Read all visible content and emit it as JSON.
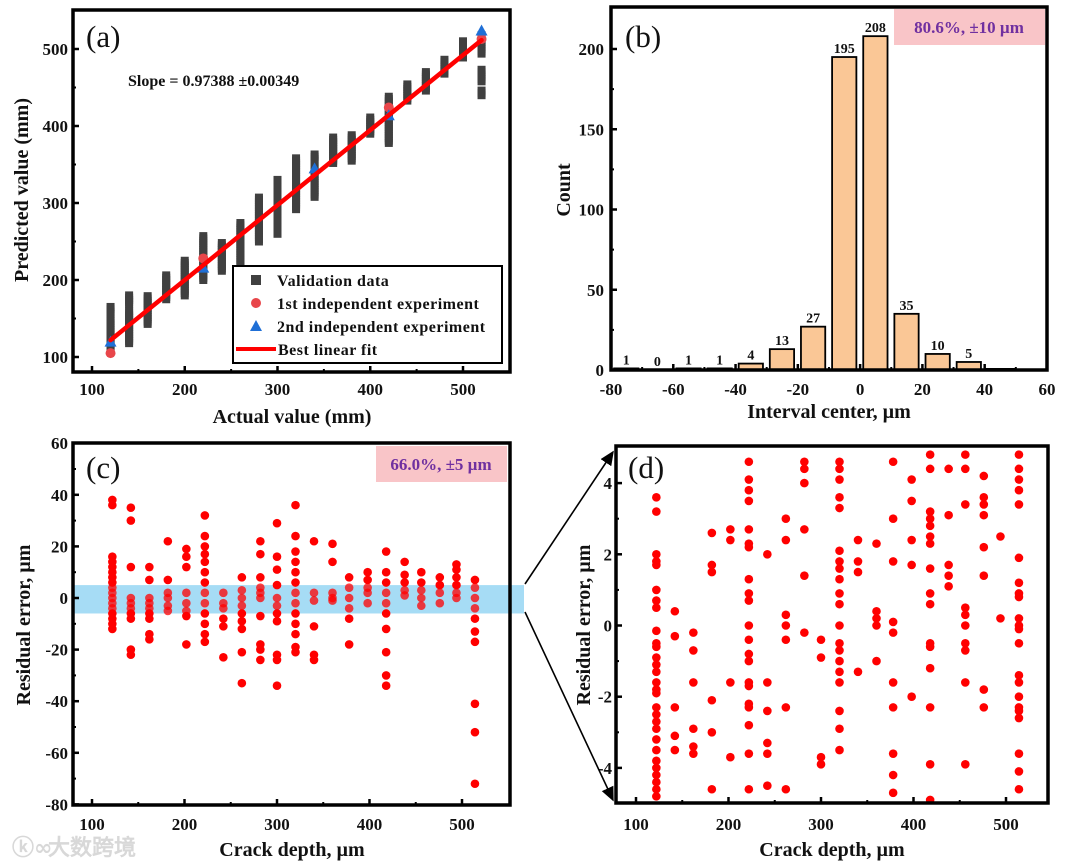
{
  "watermark": "大数跨境",
  "colors": {
    "validation": "#404040",
    "exp1": "#e8464a",
    "exp2": "#1f6fd6",
    "fit": "#ff0000",
    "bar": "#fac796",
    "note_bg": "#f9c5c8",
    "note_text": "#7030a0",
    "band": "#a6dcf5",
    "residual": "#ff0000"
  },
  "chart_data": [
    {
      "panel": "(a)",
      "type": "scatter",
      "xlabel": "Actual value (mm)",
      "ylabel": "Predicted value (mm)",
      "xticks": [
        100,
        200,
        300,
        400,
        500
      ],
      "yticks": [
        100,
        200,
        300,
        400,
        500
      ],
      "annotation": "Slope = 0.97388 ±0.00349",
      "fit": {
        "slope": 0.97388,
        "slope_err": 0.00349,
        "intercept": 5.1,
        "x_range": [
          120,
          520
        ]
      },
      "legend": [
        "Validation data",
        "1st independent experiment",
        "2nd independent experiment",
        "Best linear fit"
      ],
      "legend_position": "bottom-right",
      "validation_ranges": [
        {
          "x": 120,
          "ranges": [
            [
              108,
              150
            ],
            [
              156,
              165
            ]
          ]
        },
        {
          "x": 140,
          "ranges": [
            [
              118,
              160
            ],
            [
              168,
              180
            ]
          ]
        },
        {
          "x": 160,
          "ranges": [
            [
              143,
              180
            ]
          ]
        },
        {
          "x": 180,
          "ranges": [
            [
              175,
              196
            ],
            [
              200,
              208
            ]
          ]
        },
        {
          "x": 200,
          "ranges": [
            [
              180,
              226
            ]
          ]
        },
        {
          "x": 220,
          "ranges": [
            [
              200,
              258
            ]
          ]
        },
        {
          "x": 240,
          "ranges": [
            [
              212,
              248
            ]
          ]
        },
        {
          "x": 260,
          "ranges": [
            [
              220,
              274
            ]
          ]
        },
        {
          "x": 280,
          "ranges": [
            [
              250,
              307
            ]
          ]
        },
        {
          "x": 300,
          "ranges": [
            [
              260,
              320
            ],
            [
              324,
              332
            ]
          ]
        },
        {
          "x": 320,
          "ranges": [
            [
              292,
              360
            ]
          ]
        },
        {
          "x": 340,
          "ranges": [
            [
              308,
              348
            ],
            [
              354,
              365
            ]
          ]
        },
        {
          "x": 360,
          "ranges": [
            [
              352,
              385
            ]
          ]
        },
        {
          "x": 380,
          "ranges": [
            [
              355,
              390
            ]
          ]
        },
        {
          "x": 400,
          "ranges": [
            [
              390,
              413
            ]
          ]
        },
        {
          "x": 420,
          "ranges": [
            [
              378,
              439
            ]
          ]
        },
        {
          "x": 440,
          "ranges": [
            [
              433,
              455
            ]
          ]
        },
        {
          "x": 460,
          "ranges": [
            [
              446,
              470
            ]
          ]
        },
        {
          "x": 480,
          "ranges": [
            [
              468,
              488
            ]
          ]
        },
        {
          "x": 500,
          "ranges": [
            [
              489,
              511
            ]
          ]
        },
        {
          "x": 520,
          "ranges": [
            [
              440,
              446
            ],
            [
              458,
              474
            ],
            [
              494,
              520
            ]
          ]
        }
      ],
      "exp1": [
        [
          120,
          105
        ],
        [
          220,
          228
        ],
        [
          420,
          424
        ],
        [
          520,
          513
        ]
      ],
      "exp2": [
        [
          120,
          120
        ],
        [
          220,
          216
        ],
        [
          340,
          345
        ],
        [
          420,
          414
        ],
        [
          520,
          524
        ]
      ]
    },
    {
      "panel": "(b)",
      "type": "bar",
      "xlabel": "Interval center, µm",
      "ylabel": "Count",
      "xticks": [
        -80,
        -60,
        -40,
        -20,
        0,
        20,
        40,
        60
      ],
      "yticks": [
        0,
        50,
        100,
        150,
        200
      ],
      "xlim": [
        -80,
        60
      ],
      "ylim": [
        0,
        225
      ],
      "categories": [
        -75,
        -65,
        -55,
        -45,
        -35,
        -25,
        -15,
        -5,
        5,
        15,
        25,
        35
      ],
      "values": [
        1,
        0,
        1,
        1,
        4,
        13,
        27,
        195,
        208,
        35,
        10,
        5
      ],
      "note": "80.6%, ±10 µm"
    },
    {
      "panel": "(c)",
      "type": "scatter",
      "xlabel": "Crack depth, µm",
      "ylabel": "Residual error, µm",
      "xticks": [
        100,
        200,
        300,
        400,
        500
      ],
      "yticks": [
        60,
        40,
        20,
        0,
        -20,
        -40,
        -60,
        -80
      ],
      "ylim": [
        -80,
        60
      ],
      "band": [
        -6,
        5
      ],
      "note": "66.0%, ±5 µm",
      "columns": [
        {
          "x": 122,
          "y": [
            38,
            36,
            16,
            14,
            12,
            10,
            8,
            6,
            4,
            2,
            0,
            -2,
            -4,
            -6,
            -8,
            -10,
            -12
          ]
        },
        {
          "x": 142,
          "y": [
            35,
            30,
            12,
            0,
            -2,
            -4,
            -6,
            -8,
            -20,
            -22
          ]
        },
        {
          "x": 162,
          "y": [
            12,
            7,
            0,
            -2,
            -4,
            -6,
            -8,
            -14,
            -16
          ]
        },
        {
          "x": 182,
          "y": [
            22,
            7,
            2,
            0,
            -3,
            -5
          ]
        },
        {
          "x": 202,
          "y": [
            19,
            16,
            12,
            2,
            -2,
            -5,
            -7,
            -18
          ]
        },
        {
          "x": 222,
          "y": [
            32,
            24,
            20,
            17,
            14,
            10,
            6,
            2,
            -2,
            -6,
            -10,
            -14,
            -17
          ]
        },
        {
          "x": 242,
          "y": [
            2,
            -2,
            -4,
            -8,
            -11,
            -23
          ]
        },
        {
          "x": 262,
          "y": [
            8,
            3,
            0,
            -3,
            -6,
            -9,
            -12,
            -21,
            -33
          ]
        },
        {
          "x": 282,
          "y": [
            22,
            17,
            8,
            4,
            2,
            0,
            -7,
            -18,
            -20,
            -24
          ]
        },
        {
          "x": 300,
          "y": [
            29,
            16,
            11,
            5,
            0,
            -3,
            -6,
            -9,
            -22,
            -24,
            -34
          ]
        },
        {
          "x": 320,
          "y": [
            36,
            24,
            18,
            14,
            10,
            6,
            2,
            -2,
            -6,
            -10,
            -14,
            -19,
            -21
          ]
        },
        {
          "x": 340,
          "y": [
            22,
            2,
            -1,
            -11,
            -22,
            -24
          ]
        },
        {
          "x": 360,
          "y": [
            21,
            14,
            2,
            0,
            -1
          ]
        },
        {
          "x": 378,
          "y": [
            8,
            4,
            0,
            -4,
            -8,
            -18
          ]
        },
        {
          "x": 398,
          "y": [
            10,
            7,
            4,
            2,
            -2
          ]
        },
        {
          "x": 418,
          "y": [
            18,
            10,
            6,
            2,
            -2,
            -6,
            -12,
            -21,
            -30,
            -34
          ]
        },
        {
          "x": 438,
          "y": [
            14,
            9,
            6,
            3,
            1
          ]
        },
        {
          "x": 456,
          "y": [
            10,
            6,
            3,
            0,
            -3
          ]
        },
        {
          "x": 476,
          "y": [
            8,
            5,
            2,
            -2
          ]
        },
        {
          "x": 494,
          "y": [
            13,
            11,
            8,
            5,
            2,
            0
          ]
        },
        {
          "x": 514,
          "y": [
            7,
            4,
            0,
            -4,
            -8,
            -13,
            -17,
            -41,
            -52,
            -72
          ]
        }
      ]
    },
    {
      "panel": "(d)",
      "type": "scatter",
      "xlabel": "Crack depth, µm",
      "ylabel": "Residual error, µm",
      "xticks": [
        100,
        200,
        300,
        400,
        500
      ],
      "yticks": [
        4,
        2,
        0,
        -2,
        -4
      ],
      "ylim": [
        -5,
        5
      ],
      "columns": [
        {
          "x": 122,
          "y": [
            3.6,
            3.2,
            2.0,
            1.8,
            1.7,
            1.0,
            0.7,
            0.5,
            -0.15,
            -0.5,
            -0.6,
            -0.9,
            -1.1,
            -1.3,
            -1.6,
            -1.8,
            -1.9,
            -2.3,
            -2.5,
            -2.7,
            -2.9,
            -3.2,
            -3.5,
            -3.8,
            -4.0,
            -4.2,
            -4.4,
            -4.6,
            -4.8
          ]
        },
        {
          "x": 142,
          "y": [
            0.4,
            -0.3,
            -2.3,
            -3.1,
            -3.5
          ]
        },
        {
          "x": 162,
          "y": [
            -0.2,
            -0.7,
            -1.6,
            -2.9,
            -3.4,
            -3.6
          ]
        },
        {
          "x": 182,
          "y": [
            2.6,
            1.7,
            1.5,
            -2.1,
            -3.0,
            -4.6
          ]
        },
        {
          "x": 202,
          "y": [
            2.7,
            2.4,
            -1.6,
            -3.7
          ]
        },
        {
          "x": 222,
          "y": [
            4.6,
            4.1,
            3.8,
            3.5,
            2.7,
            2.3,
            2.2,
            1.3,
            0.9,
            0.7,
            0,
            -0.4,
            -0.8,
            -1.0,
            -1.6,
            -1.7,
            -2.2,
            -2.3,
            -2.8,
            -3.6,
            -4.6
          ]
        },
        {
          "x": 242,
          "y": [
            2.0,
            -1.6,
            -2.4,
            -3.3,
            -3.6,
            -4.5
          ]
        },
        {
          "x": 262,
          "y": [
            3.0,
            2.4,
            0.3,
            0,
            -0.4,
            -2.3,
            -4.6
          ]
        },
        {
          "x": 282,
          "y": [
            4.6,
            4.4,
            4.0,
            2.7,
            1.4,
            -0.2
          ]
        },
        {
          "x": 300,
          "y": [
            -0.4,
            -0.9,
            -3.7,
            -3.9
          ]
        },
        {
          "x": 320,
          "y": [
            4.6,
            4.4,
            4.1,
            3.6,
            3.3,
            2.1,
            1.8,
            1.6,
            1.3,
            0.9,
            0.6,
            0,
            -0.5,
            -0.7,
            -1.0,
            -1.3,
            -1.6,
            -2.4,
            -2.9,
            -3.5
          ]
        },
        {
          "x": 340,
          "y": [
            2.4,
            1.8,
            1.5,
            -1.3
          ]
        },
        {
          "x": 360,
          "y": [
            2.3,
            0.4,
            0.2,
            0,
            -1.0
          ]
        },
        {
          "x": 378,
          "y": [
            4.6,
            3.0,
            1.8,
            0.1,
            -0.2,
            -1.6,
            -2.3,
            -3.6,
            -4.2,
            -4.7
          ]
        },
        {
          "x": 398,
          "y": [
            4.1,
            3.5,
            2.4,
            1.7,
            -2.0
          ]
        },
        {
          "x": 418,
          "y": [
            4.8,
            4.4,
            3.2,
            3.0,
            2.8,
            2.5,
            2.3,
            1.6,
            0.9,
            0.6,
            -0.5,
            -0.6,
            -1.2,
            -2.3,
            -3.9,
            -4.9
          ]
        },
        {
          "x": 438,
          "y": [
            4.4,
            3.1,
            1.7,
            1.4,
            1.1
          ]
        },
        {
          "x": 456,
          "y": [
            4.8,
            4.4,
            3.4,
            0.5,
            0.3,
            0,
            -0.5,
            -0.7,
            -1.6,
            -3.9
          ]
        },
        {
          "x": 476,
          "y": [
            4.2,
            3.6,
            3.4,
            3.1,
            2.2,
            1.4,
            -1.8,
            -2.3
          ]
        },
        {
          "x": 494,
          "y": [
            2.5,
            0.2
          ]
        },
        {
          "x": 514,
          "y": [
            4.8,
            4.4,
            4.1,
            3.8,
            3.4,
            1.9,
            1.2,
            0.9,
            0.8,
            0.2,
            0,
            -0.1,
            -0.5,
            -1.4,
            -1.6,
            -2.0,
            -2.3,
            -2.4,
            -2.6,
            -3.6,
            -4.1,
            -4.6
          ]
        }
      ]
    }
  ]
}
